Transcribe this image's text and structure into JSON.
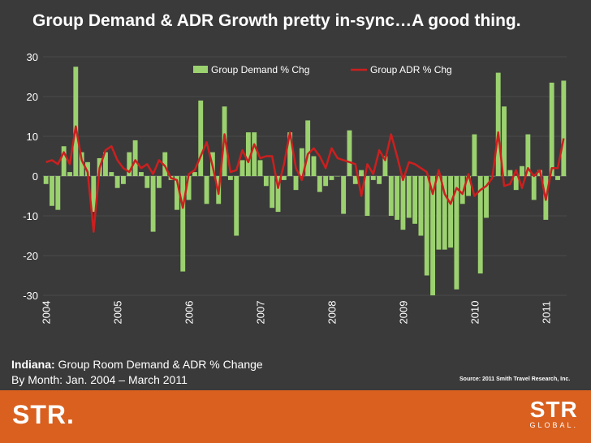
{
  "title": "Group Demand & ADR Growth pretty in-sync…A good thing.",
  "caption": {
    "bold": "Indiana:",
    "line1_rest": " Group Room Demand & ADR % Change",
    "line2": "By Month: Jan. 2004 – March 2011"
  },
  "source": "Source: 2011 Smith Travel Research, Inc.",
  "footer": {
    "logo_left": "STR.",
    "logo_right_big": "STR",
    "logo_right_small": "GLOBAL."
  },
  "colors": {
    "background": "#3a3a3a",
    "bar": "#9bd16f",
    "line": "#cc1f1f",
    "footer": "#d9601f",
    "text": "#ffffff"
  },
  "chart_data": {
    "type": "bar+line",
    "ylim": [
      -30,
      30
    ],
    "yticks": [
      30,
      20,
      10,
      0,
      -10,
      -20,
      -30
    ],
    "x_year_labels": [
      "2004",
      "2005",
      "2006",
      "2007",
      "2008",
      "2009",
      "2010",
      "2011"
    ],
    "months_per_year": 12,
    "first_period": "Jan 2004",
    "legend_position": "top-center",
    "series": [
      {
        "name": "Group Demand % Chg",
        "kind": "bar",
        "values": [
          -2.0,
          -7.5,
          -8.5,
          7.5,
          1.0,
          27.5,
          6.0,
          3.5,
          -9.0,
          4.5,
          6.0,
          1.0,
          -3.0,
          -2.0,
          6.0,
          9.0,
          1.0,
          -3.0,
          -14.0,
          -3.0,
          6.0,
          -1.0,
          -8.5,
          -24.0,
          -6.0,
          1.0,
          19.0,
          -7.0,
          6.0,
          -7.0,
          17.5,
          -1.0,
          -15.0,
          4.0,
          11.0,
          11.0,
          4.0,
          -2.5,
          -8.0,
          -9.0,
          -1.0,
          11.0,
          -3.5,
          7.0,
          14.0,
          5.0,
          -4.0,
          -2.5,
          -1.0,
          0.0,
          -9.5,
          11.5,
          -2.0,
          1.5,
          -10.0,
          -1.0,
          -2.0,
          5.0,
          -10.0,
          -11.0,
          -13.5,
          -10.5,
          -12.0,
          -15.0,
          -25.0,
          -30.0,
          -18.5,
          -18.5,
          -18.0,
          -28.5,
          -7.0,
          -5.0,
          10.5,
          -24.5,
          -10.5,
          0.0,
          26.0,
          17.5,
          1.5,
          -3.5,
          2.5,
          10.5,
          -6.0,
          1.5,
          -11.0,
          23.5,
          -1.0,
          24.0
        ]
      },
      {
        "name": "Group ADR % Chg",
        "kind": "line",
        "values": [
          3.5,
          4.0,
          3.0,
          6.0,
          3.0,
          12.5,
          4.0,
          1.0,
          -14.0,
          2.0,
          6.5,
          7.5,
          4.0,
          2.0,
          1.0,
          4.0,
          2.0,
          3.0,
          0.5,
          4.0,
          2.5,
          -0.5,
          -1.0,
          -8.0,
          0.5,
          1.5,
          5.0,
          8.5,
          2.5,
          -4.5,
          10.5,
          1.0,
          1.5,
          6.5,
          3.5,
          8.0,
          4.5,
          5.0,
          5.0,
          -3.0,
          3.0,
          11.0,
          2.0,
          -1.0,
          5.5,
          7.0,
          5.0,
          2.0,
          7.0,
          4.5,
          4.0,
          3.5,
          3.0,
          -5.0,
          3.0,
          0.5,
          6.5,
          4.0,
          10.5,
          5.0,
          -1.0,
          3.5,
          3.0,
          2.0,
          1.0,
          -4.5,
          1.5,
          -4.5,
          -7.0,
          -3.0,
          -4.5,
          0.5,
          -5.0,
          -3.5,
          -2.5,
          -0.5,
          11.0,
          -2.5,
          -2.0,
          1.5,
          -3.0,
          2.0,
          0.0,
          1.5,
          -6.0,
          2.0,
          2.0,
          9.5
        ]
      }
    ]
  }
}
